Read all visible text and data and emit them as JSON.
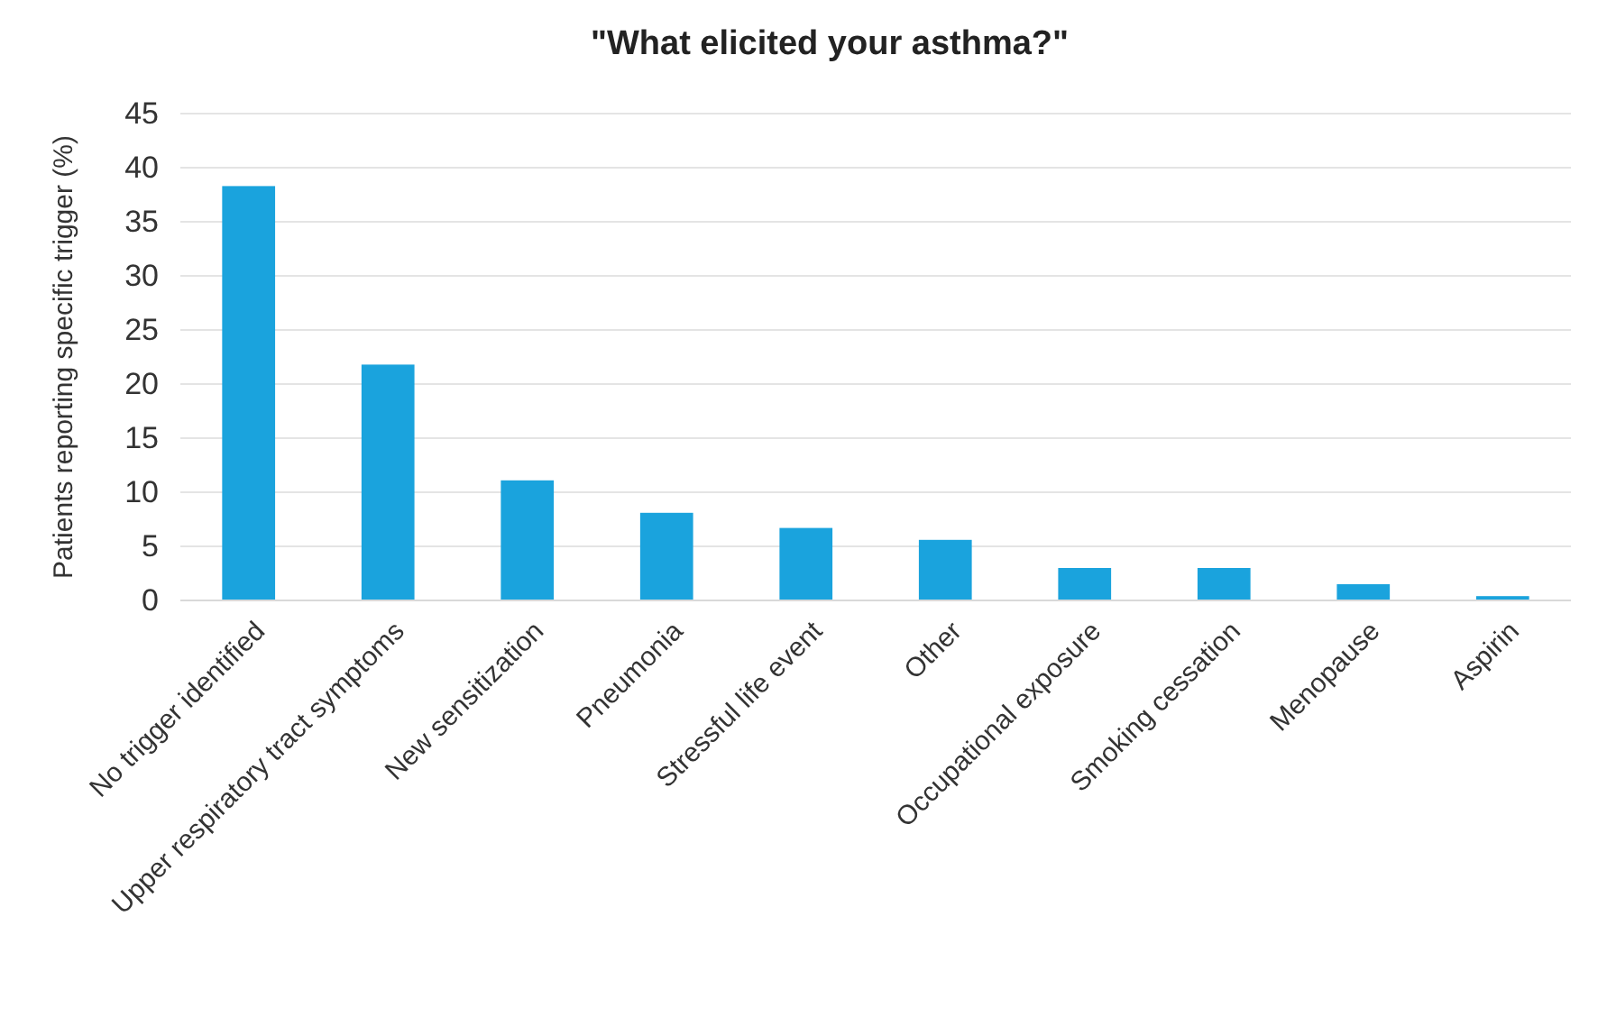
{
  "chart_data": {
    "type": "bar",
    "title": "\"What elicited your asthma?\"",
    "ylabel": "Patients reporting specific trigger (%)",
    "categories": [
      "No trigger identified",
      "Upper respiratory tract symptoms",
      "New sensitization",
      "Pneumonia",
      "Stressful life event",
      "Other",
      "Occupational exposure",
      "Smoking cessation",
      "Menopause",
      "Aspirin"
    ],
    "values": [
      38.3,
      21.8,
      11.1,
      8.1,
      6.7,
      5.6,
      3.0,
      3.0,
      1.5,
      0.4
    ],
    "color": "#1aa3dd",
    "ylim": [
      0,
      45
    ],
    "yticks": [
      0,
      5,
      10,
      15,
      20,
      25,
      30,
      35,
      40,
      45
    ],
    "grid": "y"
  }
}
